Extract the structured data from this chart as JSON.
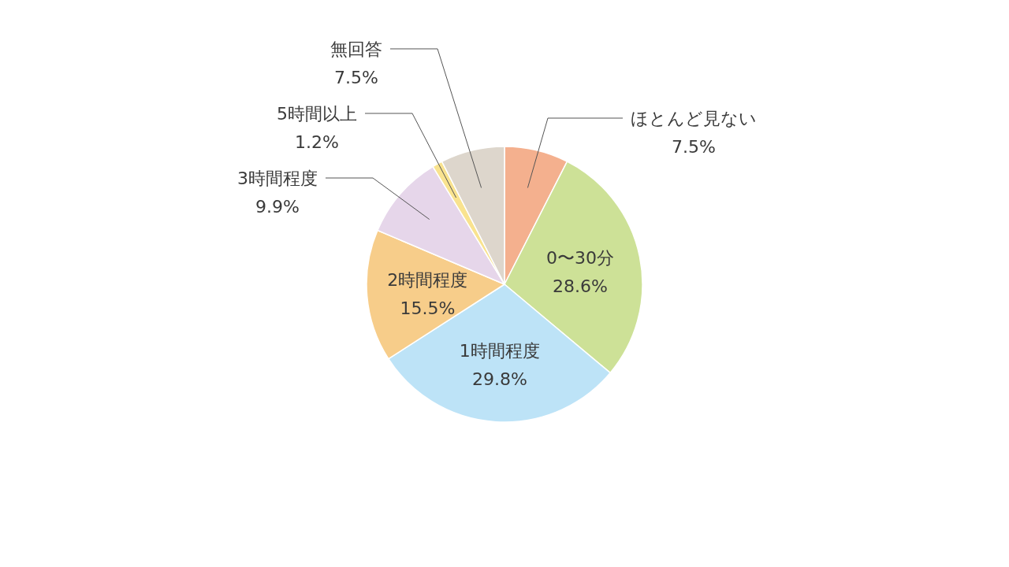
{
  "chart_data": {
    "type": "pie",
    "categories": [
      "ほとんど見ない",
      "0〜30分",
      "1時間程度",
      "2時間程度",
      "3時間程度",
      "5時間以上",
      "無回答"
    ],
    "values": [
      7.5,
      28.6,
      29.8,
      15.5,
      9.9,
      1.2,
      7.5
    ],
    "colors": [
      "#f4b08e",
      "#cde197",
      "#bde3f7",
      "#f7cd8a",
      "#e6d6ea",
      "#f9e38f",
      "#ddd6cc"
    ],
    "value_labels": [
      "7.5%",
      "28.6%",
      "29.8%",
      "15.5%",
      "9.9%",
      "1.2%",
      "7.5%"
    ]
  }
}
